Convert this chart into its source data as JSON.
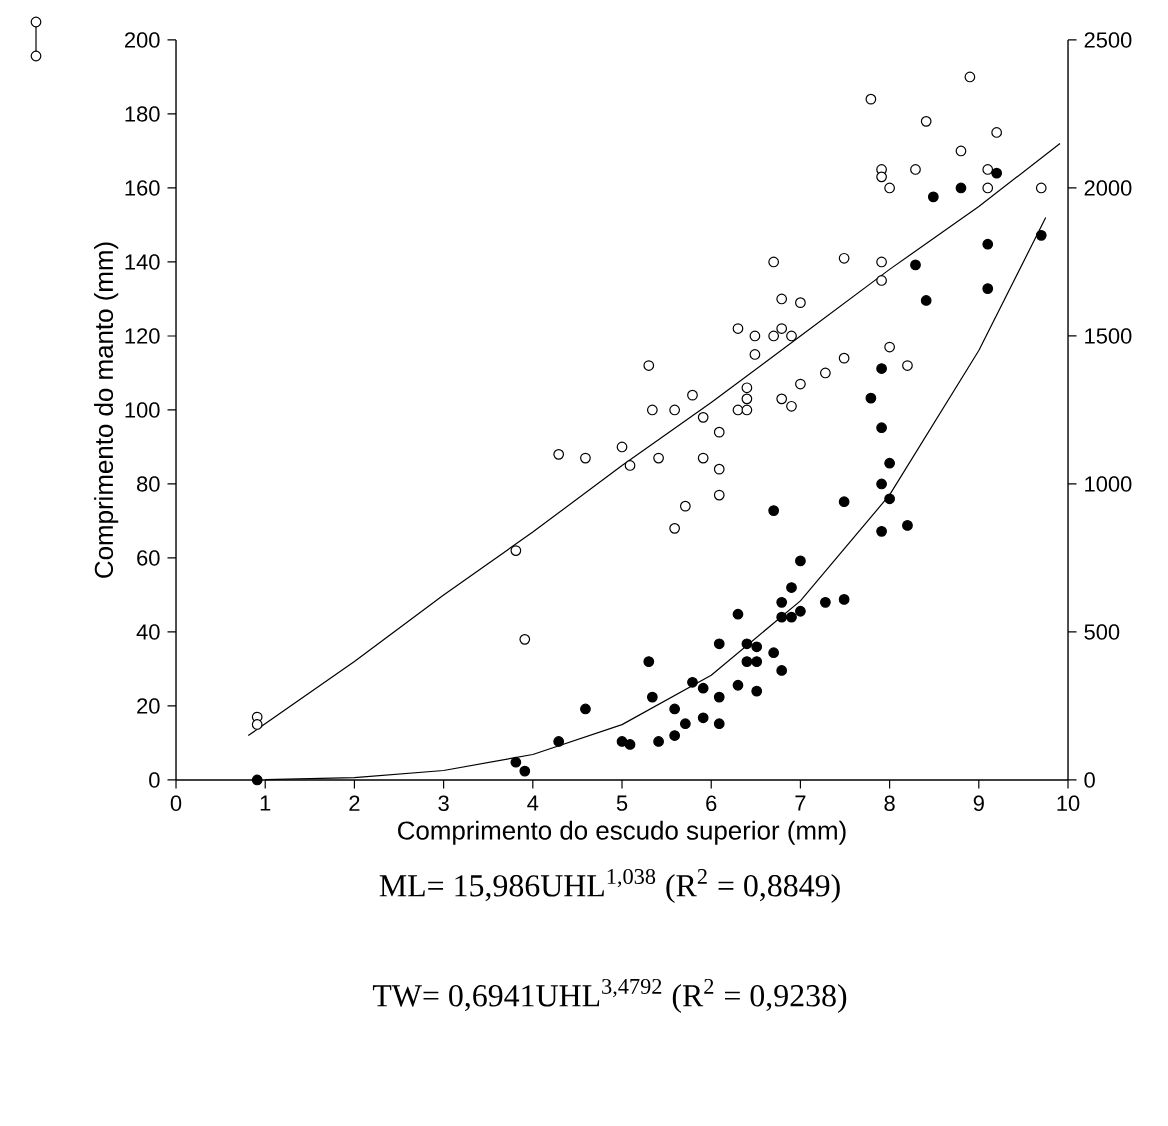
{
  "chart_data": {
    "type": "scatter",
    "xlabel": "Comprimento do escudo superior (mm)",
    "ylabel": "Comprimento do manto (mm)",
    "xlim": [
      0,
      10
    ],
    "xticks": [
      0,
      1,
      2,
      3,
      4,
      5,
      6,
      7,
      8,
      9,
      10
    ],
    "ylim": [
      0,
      200
    ],
    "yticks": [
      0,
      20,
      40,
      60,
      80,
      100,
      120,
      140,
      160,
      180,
      200
    ],
    "y2lim": [
      0,
      2500
    ],
    "y2ticks": [
      0,
      500,
      1000,
      1500,
      2000,
      2500
    ],
    "marker": "circle",
    "series": [
      {
        "color": "#ffffff",
        "x": [
          0.91,
          0.91,
          3.81,
          3.91,
          4.29,
          4.59,
          5.0,
          5.09,
          5.3,
          5.34,
          5.41,
          5.59,
          5.59,
          5.71,
          5.79,
          5.91,
          5.91,
          6.09,
          6.09,
          6.09,
          6.3,
          6.4,
          6.4,
          6.4,
          6.49,
          6.3,
          6.49,
          6.7,
          6.79,
          6.9,
          6.79,
          6.9,
          7.0,
          7.28,
          6.79,
          7.0,
          6.7,
          7.49,
          7.49,
          7.91,
          7.91,
          8.0,
          8.2,
          7.79,
          8.9,
          8.41,
          9.2,
          8.8,
          7.91,
          7.91,
          8.29,
          9.1,
          8.0,
          9.1,
          9.7
        ],
        "values": [
          17,
          15,
          62,
          38,
          88,
          87,
          90,
          85,
          112,
          100,
          87,
          100,
          68,
          74,
          104,
          98,
          87,
          94,
          84,
          77,
          100,
          100,
          103,
          106,
          115,
          122,
          120,
          120,
          122,
          120,
          103,
          101,
          107,
          110,
          130,
          129,
          140,
          141,
          114,
          140,
          135,
          117,
          112,
          184,
          190,
          178,
          175,
          170,
          165,
          163,
          165,
          165,
          160,
          160,
          160
        ]
      },
      {
        "axis": "y2",
        "color": "#000000",
        "x": [
          8.49,
          8.8,
          9.2,
          9.7,
          9.1,
          8.29,
          8.41,
          9.1,
          7.91,
          7.79,
          7.91,
          8.0,
          7.91,
          8.0,
          7.49,
          7.91,
          8.2,
          6.7,
          7.0,
          6.9,
          6.79,
          7.28,
          7.49,
          6.79,
          6.9,
          7.0,
          6.3,
          6.09,
          6.4,
          6.51,
          6.4,
          6.51,
          6.7,
          6.79,
          6.3,
          6.51,
          5.3,
          5.34,
          4.59,
          5.79,
          5.91,
          6.09,
          5.59,
          5.91,
          6.09,
          5.71,
          5.59,
          5.41,
          5.0,
          5.09,
          4.29,
          3.81,
          3.91,
          0.91
        ],
        "values": [
          1970,
          2000,
          2050,
          1840,
          1810,
          1740,
          1620,
          1660,
          1390,
          1290,
          1190,
          1070,
          1000,
          950,
          940,
          840,
          860,
          910,
          740,
          650,
          600,
          600,
          610,
          550,
          550,
          570,
          560,
          460,
          460,
          450,
          400,
          400,
          430,
          370,
          320,
          300,
          400,
          280,
          240,
          330,
          310,
          280,
          240,
          210,
          190,
          190,
          150,
          130,
          130,
          120,
          130,
          60,
          30,
          0
        ]
      },
      {
        "type": "line",
        "color": "#000000",
        "marker": "none",
        "x": [
          0.81,
          2,
          3,
          4,
          5,
          6,
          7,
          8,
          9,
          9.91
        ],
        "values": [
          12,
          32,
          50,
          67,
          85,
          102,
          120,
          138,
          155,
          172
        ]
      },
      {
        "type": "line",
        "axis": "y2",
        "color": "#000000",
        "marker": "none",
        "x": [
          1,
          2,
          3,
          4,
          5,
          6,
          7,
          8,
          9,
          9.75
        ],
        "values": [
          1,
          8,
          32,
          86,
          187,
          354,
          605,
          963,
          1451,
          1900
        ]
      }
    ],
    "annotations": [
      "ML= 15,986UHL$^{1,038}$  (R$^{2}$ = 0,8849)",
      "TW= 0,6941UHL$^{3,4792}$  (R$^{2}$ = 0,9238)"
    ]
  }
}
